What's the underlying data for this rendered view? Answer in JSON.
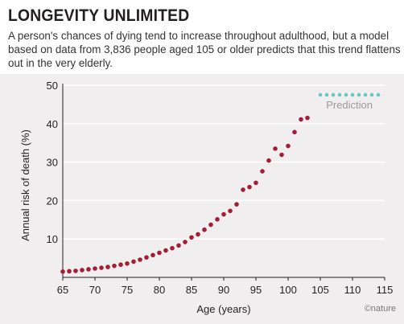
{
  "header": {
    "title": "LONGEVITY UNLIMITED",
    "subtitle": "A person's chances of dying tend to increase throughout adulthood, but a model based on data from 3,836 people aged 105 or older predicts that this trend flattens out in the very elderly."
  },
  "credit": "©nature",
  "colors": {
    "background": "#f0eeee",
    "observed": "#a21d35",
    "prediction": "#6fc5c3",
    "grid": "#ffffff",
    "axis": "#231f20"
  },
  "chart_data": {
    "type": "scatter",
    "xlabel": "Age (years)",
    "ylabel": "Annual risk of death (%)",
    "xlim": [
      65,
      115
    ],
    "ylim": [
      0,
      50
    ],
    "xticks": [
      65,
      70,
      75,
      80,
      85,
      90,
      95,
      100,
      105,
      110,
      115
    ],
    "yticks": [
      10,
      20,
      30,
      40,
      50
    ],
    "grid": "horizontal",
    "legend": "top-right",
    "series": [
      {
        "key": "observed",
        "x": [
          65,
          66,
          67,
          68,
          69,
          70,
          71,
          72,
          73,
          74,
          75,
          76,
          77,
          78,
          79,
          80,
          81,
          82,
          83,
          84,
          85,
          86,
          87,
          88,
          89,
          90,
          91,
          92,
          93,
          94,
          95,
          96,
          97,
          98,
          99,
          100,
          101,
          102,
          103,
          104
        ],
        "y": [
          1.5,
          1.6,
          1.7,
          1.9,
          2.1,
          2.3,
          2.5,
          2.7,
          3.0,
          3.3,
          3.6,
          4.1,
          4.6,
          5.2,
          5.8,
          6.4,
          7.0,
          7.6,
          8.3,
          9.2,
          10.4,
          11.2,
          12.4,
          13.7,
          15.1,
          16.4,
          17.3,
          19.0,
          22.8,
          23.5,
          24.6,
          27.6,
          30.4,
          33.5,
          31.9,
          34.2,
          37.8,
          41.1,
          41.5,
          null
        ]
      },
      {
        "key": "prediction",
        "name": "Prediction",
        "x": [
          105,
          106,
          107,
          108,
          109,
          110,
          111,
          112,
          113,
          114
        ],
        "y": [
          47.5,
          47.5,
          47.5,
          47.5,
          47.5,
          47.5,
          47.5,
          47.5,
          47.5,
          47.5
        ]
      }
    ]
  }
}
